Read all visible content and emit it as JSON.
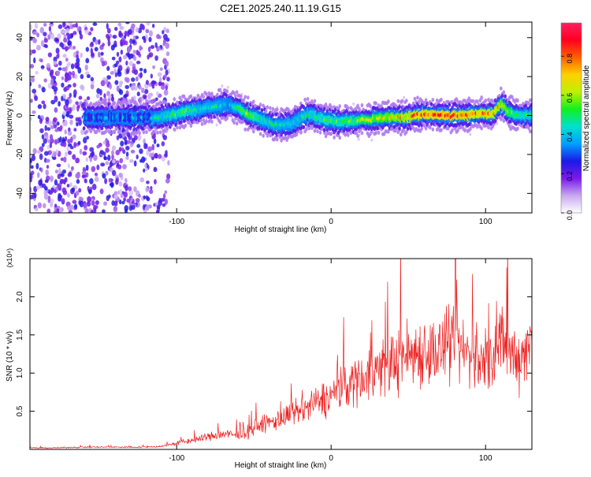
{
  "title": "C2E1.2025.240.11.19.G15",
  "chart_data": [
    {
      "type": "heatmap",
      "name": "spectrogram",
      "xlabel": "Height of straight line (km)",
      "ylabel": "Frequency (Hz)",
      "xlim": [
        -195,
        130
      ],
      "ylim": [
        -50,
        48
      ],
      "xticks": [
        -100,
        0,
        100
      ],
      "xtick_labels": [
        "-100",
        "0",
        "100"
      ],
      "yticks": [
        -40,
        -20,
        0,
        20,
        40
      ],
      "ytick_labels": [
        "-40",
        "-20",
        "0",
        "20",
        "40"
      ],
      "colorbar": {
        "label": "Normalized spectral amplitude",
        "range": [
          0,
          0.97
        ],
        "ticks": [
          0,
          0.2,
          0.4,
          0.6,
          0.8
        ],
        "tick_labels": [
          "0.0",
          "0.2",
          "0.4",
          "0.6",
          "0.8"
        ],
        "colors": [
          "#ffffff",
          "#c8a8f0",
          "#7a1ae8",
          "#1a1ae8",
          "#00a0ff",
          "#00e0d0",
          "#10f020",
          "#c0f000",
          "#ffd000",
          "#ff6000",
          "#ff0020",
          "#ff2060"
        ]
      },
      "ridge": {
        "x": [
          -115,
          -105,
          -95,
          -85,
          -75,
          -65,
          -55,
          -45,
          -35,
          -25,
          -15,
          -5,
          5,
          15,
          25,
          35,
          45,
          55,
          65,
          75,
          85,
          95,
          105,
          110,
          115,
          120,
          130
        ],
        "y": [
          -1,
          0,
          2,
          3,
          5,
          6,
          1,
          -2,
          -5,
          -4,
          1,
          -2,
          -3,
          -3,
          -2,
          -1,
          -1,
          0,
          1,
          0,
          0,
          1,
          1,
          6,
          2,
          0,
          0
        ],
        "peak_amplitude": [
          0.5,
          0.55,
          0.6,
          0.5,
          0.5,
          0.45,
          0.7,
          0.55,
          0.5,
          0.5,
          0.55,
          0.6,
          0.6,
          0.65,
          0.7,
          0.75,
          0.8,
          0.9,
          0.9,
          0.95,
          0.9,
          0.85,
          0.85,
          0.8,
          0.7,
          0.6,
          0.55
        ]
      },
      "noise_region": [
        -195,
        -105
      ]
    },
    {
      "type": "line",
      "name": "snr",
      "xlabel": "Height of straight line (km)",
      "ylabel": "SNR (10 * v/v)",
      "y_multiplier": "(x10⁴)",
      "xlim": [
        -195,
        130
      ],
      "ylim": [
        0,
        2.5
      ],
      "xticks": [
        -100,
        0,
        100
      ],
      "xtick_labels": [
        "-100",
        "0",
        "100"
      ],
      "yticks": [
        0.5,
        1.0,
        1.5,
        2.0
      ],
      "ytick_labels": [
        "0.5",
        "1.0",
        "1.5",
        "2.0"
      ],
      "color": "#ee2020",
      "series": [
        {
          "x": [
            -195,
            -180,
            -160,
            -140,
            -120,
            -110,
            -100,
            -90,
            -80,
            -70,
            -60,
            -50,
            -40,
            -30,
            -20,
            -10,
            0,
            10,
            20,
            30,
            40,
            50,
            60,
            70,
            80,
            90,
            100,
            110,
            120,
            130
          ],
          "y": [
            0.02,
            0.02,
            0.03,
            0.03,
            0.03,
            0.04,
            0.08,
            0.12,
            0.16,
            0.2,
            0.18,
            0.28,
            0.35,
            0.42,
            0.5,
            0.6,
            0.7,
            0.85,
            0.95,
            1.05,
            1.15,
            1.25,
            1.3,
            1.28,
            1.35,
            1.25,
            1.1,
            1.35,
            1.2,
            1.4
          ]
        }
      ]
    }
  ]
}
